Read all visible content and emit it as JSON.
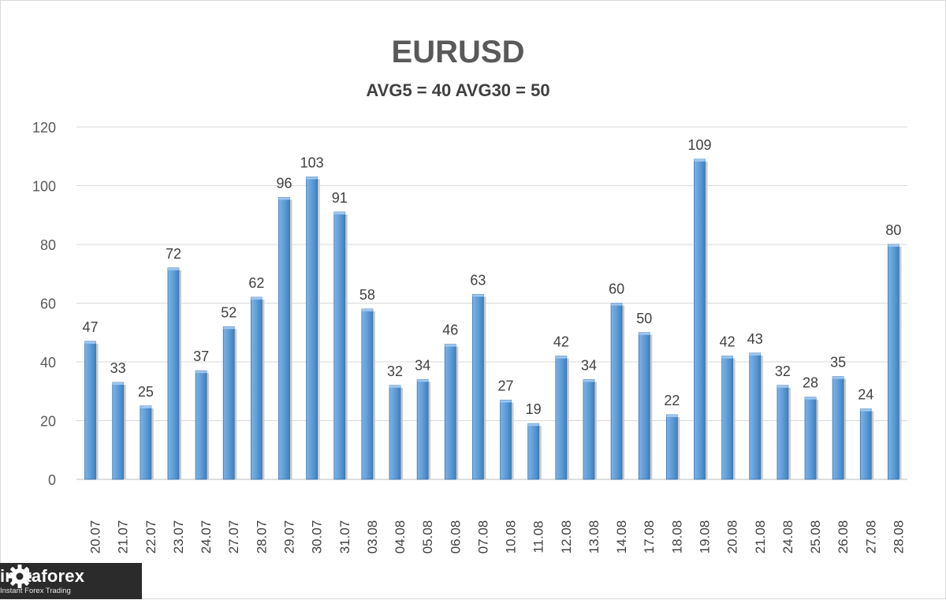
{
  "chart_data": {
    "type": "bar",
    "title": "EURUSD",
    "subtitle": "AVG5 = 40 AVG30 = 50",
    "categories": [
      "20.07",
      "21.07",
      "22.07",
      "23.07",
      "24.07",
      "27.07",
      "28.07",
      "29.07",
      "30.07",
      "31.07",
      "03.08",
      "04.08",
      "05.08",
      "06.08",
      "07.08",
      "10.08",
      "11.08",
      "12.08",
      "13.08",
      "14.08",
      "17.08",
      "18.08",
      "19.08",
      "20.08",
      "21.08",
      "24.08",
      "25.08",
      "26.08",
      "27.08",
      "28.08"
    ],
    "values": [
      47,
      33,
      25,
      72,
      37,
      52,
      62,
      96,
      103,
      91,
      58,
      32,
      34,
      46,
      63,
      27,
      19,
      42,
      34,
      60,
      50,
      22,
      109,
      42,
      43,
      32,
      28,
      35,
      24,
      80
    ],
    "ylim": [
      0,
      120
    ],
    "yticks": [
      0,
      20,
      40,
      60,
      80,
      100,
      120
    ],
    "grid": true,
    "bar_color": "#5b9bd5",
    "data_labels": true
  },
  "logo": {
    "name": "instaforex",
    "tagline": "Instant Forex Trading"
  }
}
